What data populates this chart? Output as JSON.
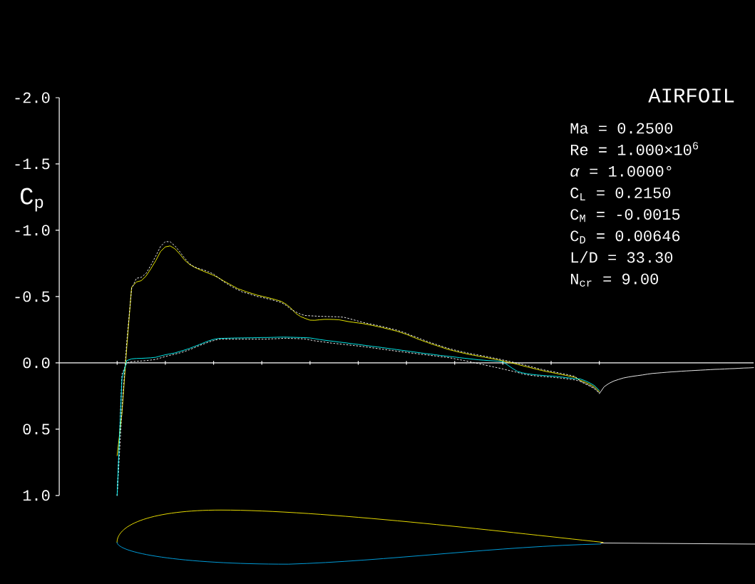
{
  "chart_data": {
    "type": "line",
    "title": "AIRFOIL",
    "ylabel": "C$_{p}$",
    "annotations": [
      "Ma = 0.2500",
      "Re = 1.000×10$^{6}$",
      "*α* = 1.0000°",
      "C$_{L}$ = 0.2150",
      "C$_{M}$ = -0.0015",
      "C$_{D}$ = 0.00646",
      "L/D = 33.30",
      "N$_{cr}$ = 9.00"
    ],
    "categories": [
      null,
      null,
      null,
      null,
      null,
      null,
      null,
      null,
      null,
      null,
      null,
      null,
      null,
      null,
      null,
      null,
      null,
      null,
      null,
      null,
      null,
      null,
      null,
      null,
      null,
      null,
      null,
      null,
      null,
      null,
      null,
      null,
      null,
      null,
      null,
      null,
      null,
      null,
      null,
      null,
      null,
      null,
      null,
      null,
      null,
      null,
      null,
      null,
      null,
      null,
      null,
      null,
      null,
      null,
      null,
      null,
      null,
      null,
      null,
      null,
      null,
      null,
      null,
      null,
      null,
      null,
      null,
      null,
      null,
      null,
      null,
      null,
      null,
      null,
      null,
      null,
      null,
      null,
      null,
      null,
      null,
      null,
      null,
      null,
      null,
      null,
      null,
      null,
      null,
      null,
      null,
      null,
      null,
      null,
      null,
      null,
      null,
      null,
      null,
      null,
      null,
      null,
      null,
      null,
      null,
      null,
      null,
      null,
      null,
      null,
      null,
      null,
      null,
      null,
      null,
      null,
      null,
      null,
      null,
      null,
      null,
      null,
      null,
      null,
      null,
      null,
      null,
      null,
      null,
      null,
      null,
      null,
      null
    ],
    "ylim": [
      1,
      -2
    ],
    "yticks": [
      {
        "value": -2,
        "label": "-2.0"
      },
      {
        "value": -1.5,
        "label": "-1.5"
      },
      {
        "value": -1,
        "label": "-1.0"
      },
      {
        "value": -0.5,
        "label": "-0.5"
      },
      {
        "value": 0,
        "label": "0.0"
      },
      {
        "value": 0.5,
        "label": "0.5"
      },
      {
        "value": 1,
        "label": "1.0"
      }
    ],
    "tick_labels": "y",
    "series": [
      {
        "color": "#ffff00",
        "values": [
          0.7,
          0.38,
          -0.12,
          -0.57,
          -0.61,
          -0.62,
          -0.655,
          -0.71,
          -0.77,
          -0.84,
          -0.875,
          -0.882,
          -0.86,
          -0.82,
          -0.775,
          -0.743,
          -0.722,
          -0.705,
          -0.69,
          -0.675,
          -0.66,
          -0.642,
          -0.62,
          -0.6,
          -0.58,
          -0.56,
          -0.547,
          -0.534,
          -0.523,
          -0.511,
          -0.503,
          -0.494,
          -0.485,
          -0.475,
          -0.464,
          -0.443,
          -0.414,
          -0.375,
          -0.35,
          -0.335,
          -0.322,
          -0.321,
          -0.325,
          -0.328,
          -0.328,
          -0.327,
          -0.325,
          -0.318,
          -0.311,
          -0.306,
          -0.301,
          -0.296,
          -0.289,
          -0.282,
          -0.274,
          -0.266,
          -0.257,
          -0.248,
          -0.239,
          -0.227,
          -0.215,
          -0.2,
          -0.185,
          -0.171,
          -0.158,
          -0.145,
          -0.133,
          -0.121,
          -0.109,
          -0.098,
          -0.089,
          -0.08,
          -0.072,
          -0.064,
          -0.057,
          -0.05,
          -0.044,
          -0.037,
          -0.03,
          -0.023,
          -0.015,
          -0.006,
          0.002,
          0.011,
          0.021,
          0.03,
          0.039,
          0.048,
          0.057,
          0.065,
          0.072,
          0.079,
          0.087,
          0.094,
          0.102,
          0.11,
          0.131,
          0.145,
          0.162,
          0.183,
          0.219,
          null,
          null,
          null,
          null,
          null,
          null,
          null,
          null,
          null,
          null,
          null,
          null,
          null,
          null,
          null,
          null,
          null,
          null,
          null,
          null,
          null,
          null,
          null,
          null,
          null,
          null,
          null,
          null,
          null,
          null,
          null,
          null
        ]
      },
      {
        "color": "#ffffff",
        "line_style": "dotted",
        "values": [
          1.0,
          0.35,
          -0.16,
          -0.56,
          -0.638,
          -0.645,
          -0.675,
          -0.737,
          -0.805,
          -0.878,
          -0.915,
          -0.913,
          -0.882,
          -0.838,
          -0.79,
          -0.748,
          -0.724,
          -0.711,
          -0.7,
          -0.686,
          -0.67,
          -0.642,
          -0.614,
          -0.592,
          -0.57,
          -0.552,
          -0.534,
          -0.525,
          -0.513,
          -0.501,
          -0.494,
          -0.485,
          -0.476,
          -0.466,
          -0.455,
          -0.434,
          -0.405,
          -0.385,
          -0.368,
          -0.357,
          -0.355,
          -0.353,
          -0.351,
          -0.35,
          -0.349,
          -0.348,
          -0.347,
          -0.344,
          -0.335,
          -0.325,
          -0.315,
          -0.305,
          -0.297,
          -0.29,
          -0.282,
          -0.274,
          -0.265,
          -0.256,
          -0.247,
          -0.235,
          -0.223,
          -0.207,
          -0.195,
          -0.18,
          -0.166,
          -0.153,
          -0.141,
          -0.129,
          -0.117,
          -0.106,
          -0.097,
          -0.088,
          -0.08,
          -0.072,
          -0.065,
          -0.058,
          -0.052,
          -0.045,
          -0.037,
          -0.03,
          -0.022,
          -0.014,
          -0.006,
          0.002,
          0.011,
          0.021,
          0.03,
          0.04,
          0.049,
          0.057,
          0.064,
          0.071,
          0.079,
          0.086,
          0.094,
          0.103,
          0.138,
          0.153,
          0.171,
          0.192,
          0.228,
          null,
          null,
          null,
          null,
          null,
          null,
          null,
          null,
          null,
          null,
          null,
          null,
          null,
          null,
          null,
          null,
          null,
          null,
          null,
          null,
          null,
          null,
          null,
          null,
          null,
          null,
          null,
          null,
          null,
          null,
          null,
          null
        ]
      },
      {
        "color": "#ffffff",
        "line_style": "dotted",
        "values": [
          1.0,
          0.085,
          0.0,
          -0.009,
          -0.012,
          -0.014,
          -0.017,
          -0.021,
          -0.026,
          -0.037,
          -0.048,
          -0.057,
          -0.066,
          -0.075,
          -0.086,
          -0.099,
          -0.114,
          -0.13,
          -0.143,
          -0.157,
          -0.168,
          -0.178,
          -0.179,
          -0.179,
          -0.179,
          -0.179,
          -0.179,
          -0.179,
          -0.179,
          -0.179,
          -0.179,
          -0.179,
          -0.181,
          -0.182,
          -0.184,
          -0.186,
          -0.184,
          -0.183,
          -0.182,
          -0.18,
          -0.173,
          -0.166,
          -0.161,
          -0.157,
          -0.151,
          -0.147,
          -0.143,
          -0.139,
          -0.135,
          -0.131,
          -0.127,
          -0.123,
          -0.118,
          -0.113,
          -0.108,
          -0.103,
          -0.098,
          -0.093,
          -0.088,
          -0.084,
          -0.079,
          -0.074,
          -0.07,
          -0.065,
          -0.061,
          -0.056,
          -0.052,
          -0.047,
          -0.043,
          -0.038,
          -0.031,
          -0.024,
          -0.017,
          -0.01,
          -0.002,
          0.006,
          0.014,
          0.022,
          0.03,
          0.038,
          0.046,
          0.055,
          0.063,
          0.072,
          0.083,
          0.09,
          0.095,
          0.099,
          0.102,
          0.105,
          0.108,
          0.111,
          0.115,
          0.119,
          0.124,
          0.129,
          0.139,
          0.158,
          0.175,
          0.196,
          0.228,
          null,
          null,
          null,
          null,
          null,
          null,
          null,
          null,
          null,
          null,
          null,
          null,
          null,
          null,
          null,
          null,
          null,
          null,
          null,
          null,
          null,
          null,
          null,
          null,
          null,
          null,
          null,
          null,
          null,
          null,
          null,
          null
        ]
      },
      {
        "color": "#00ffff",
        "values": [
          1.0,
          0.118,
          -0.017,
          -0.03,
          -0.033,
          -0.034,
          -0.036,
          -0.038,
          -0.042,
          -0.052,
          -0.061,
          -0.068,
          -0.075,
          -0.086,
          -0.097,
          -0.109,
          -0.123,
          -0.137,
          -0.152,
          -0.166,
          -0.177,
          -0.184,
          -0.185,
          -0.186,
          -0.187,
          -0.188,
          -0.188,
          -0.189,
          -0.189,
          -0.19,
          -0.191,
          -0.191,
          -0.192,
          -0.193,
          -0.194,
          -0.194,
          -0.193,
          -0.192,
          -0.191,
          -0.19,
          -0.188,
          -0.182,
          -0.176,
          -0.171,
          -0.166,
          -0.162,
          -0.157,
          -0.153,
          -0.148,
          -0.143,
          -0.139,
          -0.134,
          -0.129,
          -0.124,
          -0.12,
          -0.115,
          -0.11,
          -0.105,
          -0.1,
          -0.095,
          -0.09,
          -0.085,
          -0.08,
          -0.075,
          -0.07,
          -0.066,
          -0.061,
          -0.056,
          -0.052,
          -0.048,
          -0.044,
          -0.039,
          -0.035,
          -0.031,
          -0.027,
          -0.023,
          -0.02,
          -0.017,
          -0.015,
          -0.013,
          -0.008,
          0.017,
          0.042,
          0.064,
          0.075,
          0.082,
          0.087,
          0.091,
          0.094,
          0.097,
          0.099,
          0.102,
          0.106,
          0.111,
          0.115,
          0.12,
          0.121,
          0.134,
          0.151,
          0.172,
          0.208,
          null,
          null,
          null,
          null,
          null,
          null,
          null,
          null,
          null,
          null,
          null,
          null,
          null,
          null,
          null,
          null,
          null,
          null,
          null,
          null,
          null,
          null,
          null,
          null,
          null,
          null,
          null,
          null,
          null,
          null,
          null,
          null
        ]
      },
      {
        "color": "#ffffff",
        "values": [
          null,
          null,
          null,
          null,
          null,
          null,
          null,
          null,
          null,
          null,
          null,
          null,
          null,
          null,
          null,
          null,
          null,
          null,
          null,
          null,
          null,
          null,
          null,
          null,
          null,
          null,
          null,
          null,
          null,
          null,
          null,
          null,
          null,
          null,
          null,
          null,
          null,
          null,
          null,
          null,
          null,
          null,
          null,
          null,
          null,
          null,
          null,
          null,
          null,
          null,
          null,
          null,
          null,
          null,
          null,
          null,
          null,
          null,
          null,
          null,
          null,
          null,
          null,
          null,
          null,
          null,
          null,
          null,
          null,
          null,
          null,
          null,
          null,
          null,
          null,
          null,
          null,
          null,
          null,
          null,
          null,
          null,
          null,
          null,
          null,
          null,
          null,
          null,
          null,
          null,
          null,
          null,
          null,
          null,
          null,
          null,
          null,
          null,
          null,
          null,
          0.232,
          0.18,
          0.155,
          0.137,
          0.125,
          0.114,
          0.107,
          0.101,
          0.096,
          0.091,
          0.085,
          0.08,
          0.077,
          0.074,
          0.071,
          0.068,
          0.066,
          0.063,
          0.061,
          0.059,
          0.057,
          0.055,
          0.053,
          0.051,
          0.049,
          0.048,
          0.046,
          0.044,
          0.043,
          0.041,
          0.039,
          0.038,
          0.036
        ]
      }
    ]
  }
}
